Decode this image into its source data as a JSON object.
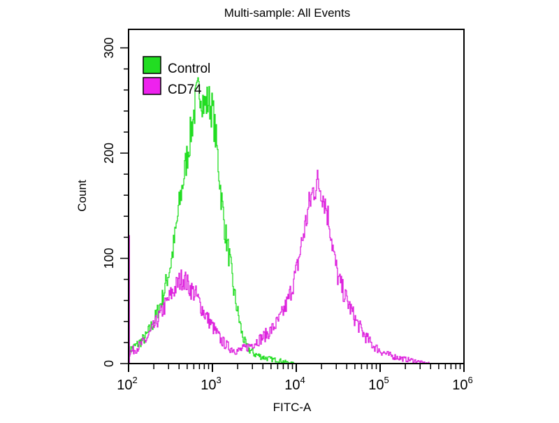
{
  "chart_data": {
    "type": "line",
    "title": "Multi-sample: All Events",
    "xlabel": "FITC-A",
    "ylabel": "Count",
    "xscale": "log",
    "xlim_log10": [
      2,
      6
    ],
    "ylim": [
      0,
      310
    ],
    "x_ticks": [
      {
        "base": "10",
        "exp": "2"
      },
      {
        "base": "10",
        "exp": "3"
      },
      {
        "base": "10",
        "exp": "4"
      },
      {
        "base": "10",
        "exp": "5"
      },
      {
        "base": "10",
        "exp": "6"
      }
    ],
    "y_ticks": [
      "0",
      "100",
      "200",
      "300"
    ],
    "legend_position": "top-left",
    "series": [
      {
        "name": "Control",
        "color": "#22dd22",
        "x_log10": [
          2.0,
          2.1,
          2.2,
          2.3,
          2.4,
          2.5,
          2.55,
          2.6,
          2.65,
          2.7,
          2.75,
          2.8,
          2.85,
          2.9,
          2.95,
          3.0,
          3.05,
          3.1,
          3.15,
          3.2,
          3.25,
          3.3,
          3.35,
          3.4,
          3.5,
          3.6,
          3.7,
          3.8,
          3.9,
          4.0
        ],
        "y": [
          12,
          18,
          25,
          40,
          62,
          95,
          120,
          150,
          175,
          200,
          225,
          250,
          262,
          245,
          250,
          240,
          205,
          160,
          125,
          100,
          70,
          48,
          28,
          16,
          9,
          6,
          4,
          3,
          1,
          0
        ]
      },
      {
        "name": "CD74",
        "color": "#dd22dd",
        "x_log10": [
          2.0,
          2.1,
          2.2,
          2.3,
          2.4,
          2.5,
          2.6,
          2.65,
          2.7,
          2.8,
          2.9,
          3.0,
          3.1,
          3.2,
          3.3,
          3.4,
          3.5,
          3.6,
          3.7,
          3.8,
          3.9,
          4.0,
          4.05,
          4.1,
          4.15,
          4.2,
          4.25,
          4.3,
          4.35,
          4.4,
          4.45,
          4.5,
          4.6,
          4.7,
          4.8,
          4.9,
          5.0,
          5.1,
          5.2,
          5.3,
          5.4,
          5.5,
          5.6
        ],
        "y": [
          10,
          15,
          22,
          35,
          50,
          65,
          78,
          82,
          75,
          65,
          48,
          35,
          22,
          15,
          12,
          15,
          20,
          25,
          32,
          42,
          60,
          88,
          110,
          130,
          150,
          165,
          172,
          165,
          150,
          130,
          100,
          80,
          60,
          42,
          28,
          18,
          12,
          8,
          6,
          4,
          3,
          1,
          0
        ]
      }
    ]
  }
}
